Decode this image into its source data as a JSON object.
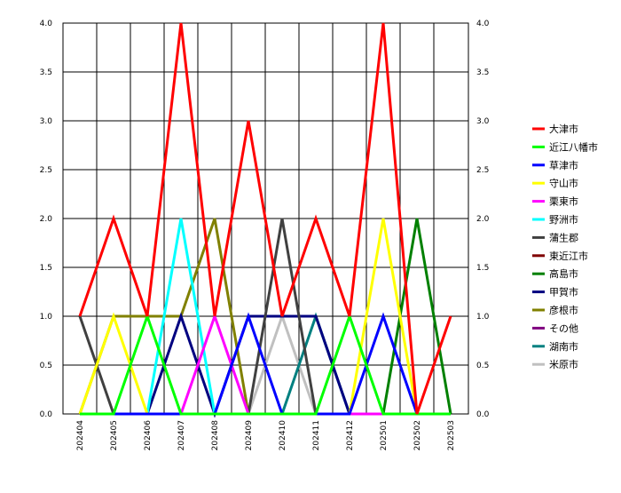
{
  "chart_data": {
    "type": "line",
    "title": "",
    "xlabel": "",
    "ylabel": "",
    "ylim": [
      0,
      4
    ],
    "yticks": [
      "0.0",
      "0.5",
      "1.0",
      "1.5",
      "2.0",
      "2.5",
      "3.0",
      "3.5",
      "4.0"
    ],
    "grid": true,
    "legend_position": "right",
    "x": [
      "202404",
      "202405",
      "202406",
      "202407",
      "202408",
      "202409",
      "202410",
      "202411",
      "202412",
      "202501",
      "202502",
      "202503"
    ],
    "series": [
      {
        "name": "大津市",
        "color": "#ff0000",
        "values": [
          1,
          2,
          1,
          4,
          1,
          3,
          1,
          2,
          1,
          4,
          0,
          1
        ]
      },
      {
        "name": "近江八幡市",
        "color": "#00ff00",
        "values": [
          0,
          0,
          1,
          0,
          0,
          0,
          0,
          0,
          1,
          0,
          0,
          0
        ]
      },
      {
        "name": "草津市",
        "color": "#0000ff",
        "values": [
          0,
          0,
          0,
          0,
          0,
          1,
          0,
          0,
          0,
          1,
          0,
          0
        ]
      },
      {
        "name": "守山市",
        "color": "#ffff00",
        "values": [
          0,
          1,
          0,
          0,
          0,
          0,
          0,
          0,
          0,
          2,
          0,
          0
        ]
      },
      {
        "name": "栗東市",
        "color": "#ff00ff",
        "values": [
          0,
          0,
          0,
          0,
          1,
          0,
          0,
          0,
          0,
          0,
          0,
          0
        ]
      },
      {
        "name": "野洲市",
        "color": "#00ffff",
        "values": [
          0,
          0,
          0,
          2,
          0,
          0,
          0,
          0,
          0,
          0,
          0,
          0
        ]
      },
      {
        "name": "蒲生郡",
        "color": "#404040",
        "values": [
          1,
          0,
          0,
          0,
          0,
          0,
          2,
          0,
          0,
          0,
          0,
          0
        ]
      },
      {
        "name": "東近江市",
        "color": "#800000",
        "values": [
          0,
          0,
          0,
          0,
          0,
          0,
          0,
          0,
          0,
          0,
          0,
          0
        ]
      },
      {
        "name": "高島市",
        "color": "#008000",
        "values": [
          0,
          0,
          0,
          0,
          0,
          0,
          0,
          0,
          0,
          0,
          2,
          0
        ]
      },
      {
        "name": "甲賀市",
        "color": "#000080",
        "values": [
          0,
          0,
          0,
          1,
          0,
          1,
          1,
          1,
          0,
          0,
          0,
          0
        ]
      },
      {
        "name": "彦根市",
        "color": "#808000",
        "values": [
          0,
          1,
          1,
          1,
          2,
          0,
          0,
          0,
          0,
          0,
          0,
          0
        ]
      },
      {
        "name": "その他",
        "color": "#800080",
        "values": [
          0,
          0,
          0,
          0,
          0,
          0,
          0,
          0,
          0,
          0,
          0,
          0
        ]
      },
      {
        "name": "湖南市",
        "color": "#008080",
        "values": [
          0,
          0,
          0,
          0,
          0,
          0,
          0,
          1,
          0,
          0,
          0,
          0
        ]
      },
      {
        "name": "米原市",
        "color": "#c0c0c0",
        "values": [
          0,
          0,
          0,
          0,
          0,
          0,
          1,
          0,
          0,
          0,
          0,
          0
        ]
      }
    ]
  }
}
